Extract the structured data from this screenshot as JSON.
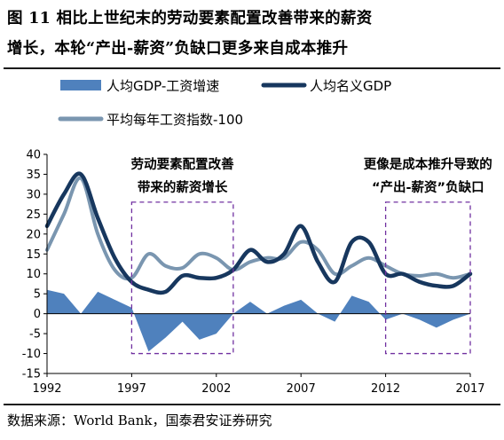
{
  "figure": {
    "title_line1": "图 11  相比上世纪末的劳动要素配置改善带来的薪资",
    "title_line2": "增长，本轮“产出-薪资”负缺口更多来自成本推升",
    "source": "数据来源：World Bank，国泰君安证券研究"
  },
  "chart_data": {
    "type": "line",
    "title": "",
    "xlabel": "",
    "ylabel": "",
    "x": [
      1992,
      1993,
      1994,
      1995,
      1996,
      1997,
      1998,
      1999,
      2000,
      2001,
      2002,
      2003,
      2004,
      2005,
      2006,
      2007,
      2008,
      2009,
      2010,
      2011,
      2012,
      2013,
      2014,
      2015,
      2016,
      2017
    ],
    "xticks": [
      1992,
      1997,
      2002,
      2007,
      2012,
      2017
    ],
    "ylim": [
      -15,
      40
    ],
    "yticks": [
      -15,
      -10,
      -5,
      0,
      5,
      10,
      15,
      20,
      25,
      30,
      35,
      40
    ],
    "grid": false,
    "legend": "top",
    "series": [
      {
        "name": "人均GDP-工资增速",
        "kind": "area",
        "color": "#4F81BD",
        "values": [
          6,
          5,
          0,
          5.5,
          3.5,
          1.5,
          -9.5,
          -6,
          -2,
          -6.5,
          -5,
          0,
          3,
          0,
          2,
          3.5,
          0,
          -2,
          4.5,
          3,
          -1.5,
          0,
          -1.5,
          -3.5,
          -1.5,
          0
        ]
      },
      {
        "name": "人均名义GDP",
        "kind": "line",
        "color": "#17375E",
        "values": [
          22,
          30,
          35,
          24,
          14,
          8,
          6,
          5.5,
          9.5,
          9,
          9,
          11,
          16,
          13,
          15,
          22,
          13,
          8,
          18,
          18,
          10,
          10,
          8,
          7,
          7,
          10
        ]
      },
      {
        "name": "平均每年工资指数-100",
        "kind": "line",
        "color": "#7A96B0",
        "values": [
          16,
          25,
          34,
          20,
          11,
          9,
          15,
          12,
          11.5,
          15,
          14,
          11,
          13,
          14,
          14,
          18,
          16,
          10,
          12,
          14,
          12,
          10,
          9.5,
          10,
          9,
          10
        ]
      }
    ],
    "annotations": [
      {
        "lines": [
          "劳动要素配置改善",
          "带来的薪资增长"
        ],
        "x_start": 1997,
        "x_end": 2003,
        "y_bottom": -10,
        "y_top": 28
      },
      {
        "lines": [
          "更像是成本推升导致的",
          "“产出-薪资”负缺口"
        ],
        "x_start": 2012,
        "x_end": 2017,
        "y_bottom": -10,
        "y_top": 28
      }
    ]
  }
}
